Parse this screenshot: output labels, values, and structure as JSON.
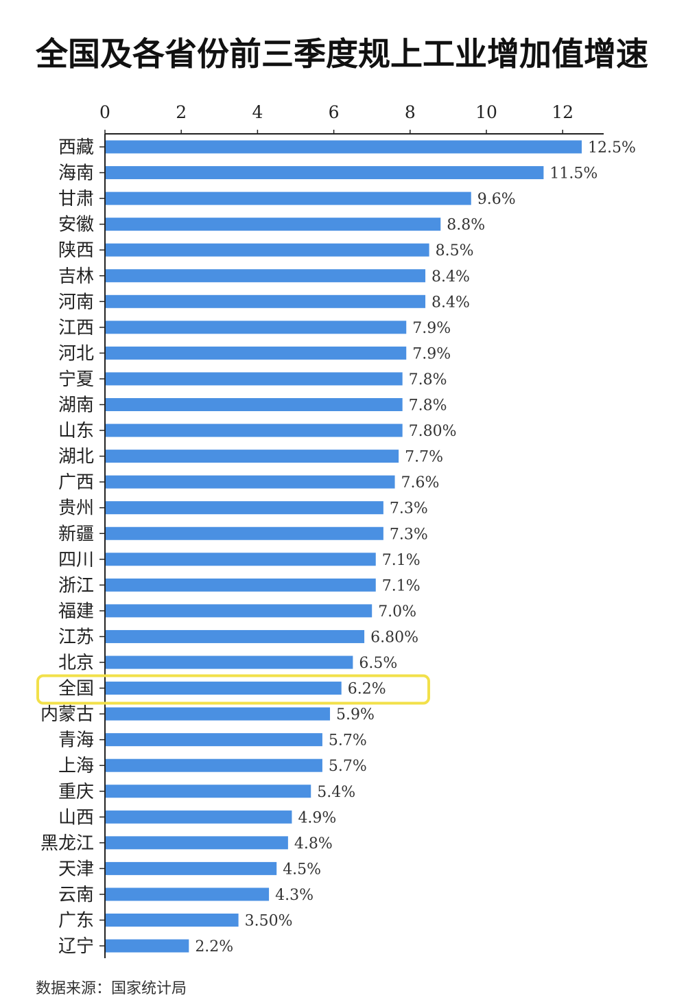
{
  "title": "全国及各省份前三季度规上工业增加值增速",
  "source_note": "数据来源：国家统计局",
  "colors": {
    "bar": "#4a90e2",
    "highlight_box": "#f2e04a",
    "axis": "#222222"
  },
  "chart_data": {
    "type": "bar",
    "orientation": "horizontal",
    "title": "全国及各省份前三季度规上工业增加值增速",
    "xlim": [
      0,
      13
    ],
    "xticks": [
      "0",
      "2",
      "4",
      "6",
      "8",
      "10",
      "12"
    ],
    "xtick_values": [
      0,
      2,
      4,
      6,
      8,
      10,
      12
    ],
    "x_axis_position": "top",
    "grid": false,
    "highlighted_category": "全国",
    "categories": [
      "西藏",
      "海南",
      "甘肃",
      "安徽",
      "陕西",
      "吉林",
      "河南",
      "江西",
      "河北",
      "宁夏",
      "湖南",
      "山东",
      "湖北",
      "广西",
      "贵州",
      "新疆",
      "四川",
      "浙江",
      "福建",
      "江苏",
      "北京",
      "全国",
      "内蒙古",
      "青海",
      "上海",
      "重庆",
      "山西",
      "黑龙江",
      "天津",
      "云南",
      "广东",
      "辽宁"
    ],
    "values": [
      12.5,
      11.5,
      9.6,
      8.8,
      8.5,
      8.4,
      8.4,
      7.9,
      7.9,
      7.8,
      7.8,
      7.8,
      7.7,
      7.6,
      7.3,
      7.3,
      7.1,
      7.1,
      7.0,
      6.8,
      6.5,
      6.2,
      5.9,
      5.7,
      5.7,
      5.4,
      4.9,
      4.8,
      4.5,
      4.3,
      3.5,
      2.2
    ],
    "value_labels": [
      "12.5%",
      "11.5%",
      "9.6%",
      "8.8%",
      "8.5%",
      "8.4%",
      "8.4%",
      "7.9%",
      "7.9%",
      "7.8%",
      "7.8%",
      "7.80%",
      "7.7%",
      "7.6%",
      "7.3%",
      "7.3%",
      "7.1%",
      "7.1%",
      "7.0%",
      "6.80%",
      "6.5%",
      "6.2%",
      "5.9%",
      "5.7%",
      "5.7%",
      "5.4%",
      "4.9%",
      "4.8%",
      "4.5%",
      "4.3%",
      "3.50%",
      "2.2%"
    ]
  }
}
